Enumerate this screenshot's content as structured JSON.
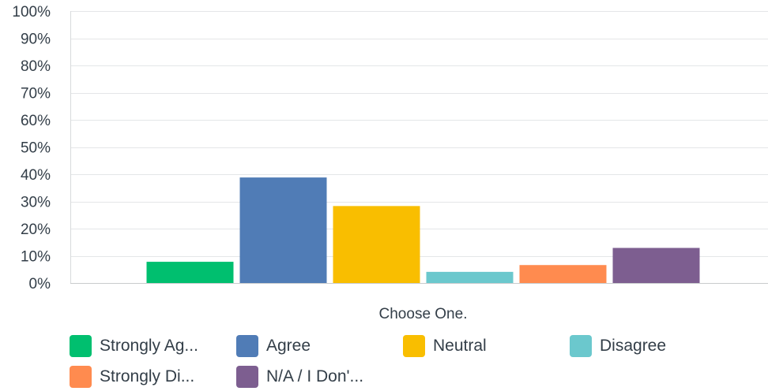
{
  "chart_data": {
    "type": "bar",
    "categories": [
      "Choose One."
    ],
    "series": [
      {
        "name": "Strongly Ag...",
        "values": [
          7.8
        ],
        "color": "#00bf6f"
      },
      {
        "name": "Agree",
        "values": [
          38.8
        ],
        "color": "#507cb6"
      },
      {
        "name": "Neutral",
        "values": [
          28.3
        ],
        "color": "#f9be00"
      },
      {
        "name": "Disagree",
        "values": [
          4.1
        ],
        "color": "#6bc8cd"
      },
      {
        "name": "Strongly Di...",
        "values": [
          6.6
        ],
        "color": "#ff8b4f"
      },
      {
        "name": "N/A / I Don'...",
        "values": [
          12.9
        ],
        "color": "#7d5e90"
      }
    ],
    "ylim": [
      0,
      100
    ],
    "yticks": [
      "0%",
      "10%",
      "20%",
      "30%",
      "40%",
      "50%",
      "60%",
      "70%",
      "80%",
      "90%",
      "100%"
    ],
    "grid": true,
    "legend_position": "bottom",
    "title": "",
    "xlabel": "",
    "ylabel": ""
  }
}
